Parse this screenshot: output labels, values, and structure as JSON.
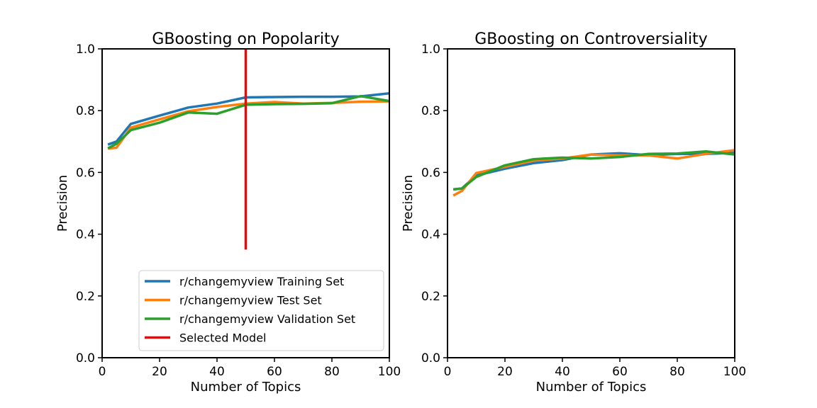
{
  "chart_data": [
    {
      "type": "line",
      "title": "GBoosting on Popolarity",
      "xlabel": "Number of Topics",
      "ylabel": "Precision",
      "xlim": [
        0,
        100
      ],
      "ylim": [
        0,
        1
      ],
      "xticks": [
        0,
        20,
        40,
        60,
        80,
        100
      ],
      "yticks": [
        "0.0",
        "0.2",
        "0.4",
        "0.6",
        "0.8",
        "1.0"
      ],
      "grid": false,
      "legend": "lower-right",
      "x": [
        2,
        5,
        10,
        20,
        30,
        40,
        50,
        60,
        70,
        80,
        90,
        100
      ],
      "series": [
        {
          "name": "r/changemyview Training Set",
          "color": "#1f77b4",
          "values": [
            0.69,
            0.7,
            0.757,
            0.784,
            0.81,
            0.823,
            0.843,
            0.844,
            0.845,
            0.845,
            0.846,
            0.856
          ]
        },
        {
          "name": "r/changemyview Test Set",
          "color": "#ff7f0e",
          "values": [
            0.677,
            0.68,
            0.745,
            0.772,
            0.798,
            0.812,
            0.823,
            0.828,
            0.823,
            0.825,
            0.829,
            0.83
          ]
        },
        {
          "name": "r/changemyview Validation Set",
          "color": "#2ca02c",
          "values": [
            0.678,
            0.693,
            0.737,
            0.761,
            0.794,
            0.79,
            0.819,
            0.821,
            0.822,
            0.824,
            0.847,
            0.831
          ]
        }
      ],
      "vline": {
        "name": "Selected Model",
        "color": "#ff0000",
        "x": 50,
        "ymin": 0.35,
        "ymax": 1.0
      }
    },
    {
      "type": "line",
      "title": "GBoosting on Controversiality",
      "xlabel": "Number of Topics",
      "ylabel": "Precision",
      "xlim": [
        0,
        100
      ],
      "ylim": [
        0,
        1
      ],
      "xticks": [
        0,
        20,
        40,
        60,
        80,
        100
      ],
      "yticks": [
        "0.0",
        "0.2",
        "0.4",
        "0.6",
        "0.8",
        "1.0"
      ],
      "grid": false,
      "x": [
        2,
        5,
        10,
        20,
        30,
        40,
        50,
        60,
        70,
        80,
        90,
        100
      ],
      "series": [
        {
          "name": "",
          "color": "#1f77b4",
          "values": [
            0.545,
            0.548,
            0.59,
            0.612,
            0.63,
            0.64,
            0.658,
            0.662,
            0.656,
            0.66,
            0.66,
            0.663
          ]
        },
        {
          "name": "",
          "color": "#ff7f0e",
          "values": [
            0.525,
            0.54,
            0.598,
            0.618,
            0.638,
            0.645,
            0.658,
            0.655,
            0.655,
            0.645,
            0.66,
            0.672
          ]
        },
        {
          "name": "",
          "color": "#2ca02c",
          "values": [
            0.545,
            0.548,
            0.585,
            0.623,
            0.643,
            0.648,
            0.645,
            0.65,
            0.66,
            0.661,
            0.668,
            0.658
          ]
        }
      ]
    }
  ]
}
